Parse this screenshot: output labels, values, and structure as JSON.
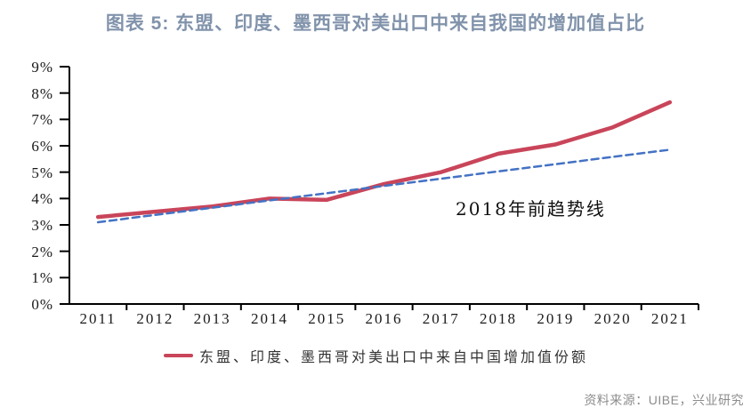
{
  "title": "图表 5:  东盟、印度、墨西哥对美出口中来自我国的增加值占比",
  "source": "资料来源：UIBE，兴业研究",
  "colors": {
    "title": "#8193AB",
    "axis": "#000000",
    "source_text": "#8C8C8C",
    "main_series": "#C9455A",
    "trend_line": "#4472C4"
  },
  "chart_data": {
    "type": "line",
    "title": "图表 5:  东盟、印度、墨西哥对美出口中来自我国的增加值占比",
    "x": [
      2011,
      2012,
      2013,
      2014,
      2015,
      2016,
      2017,
      2018,
      2019,
      2020,
      2021
    ],
    "series": [
      {
        "name": "东盟、印度、墨西哥对美出口中来自中国增加值份额",
        "style": "solid",
        "color": "#C9455A",
        "values": [
          3.3,
          3.5,
          3.7,
          4.0,
          3.95,
          4.55,
          5.0,
          5.7,
          6.05,
          6.7,
          7.65
        ]
      },
      {
        "name": "2018年前趋势线",
        "style": "dashed",
        "color": "#4472C4",
        "values": [
          3.1,
          3.38,
          3.65,
          3.93,
          4.2,
          4.48,
          4.75,
          5.03,
          5.3,
          5.58,
          5.85
        ]
      }
    ],
    "xlabel": "",
    "ylabel": "",
    "ylim": [
      0,
      9
    ],
    "ytick_labels": [
      "0%",
      "1%",
      "2%",
      "3%",
      "4%",
      "5%",
      "6%",
      "7%",
      "8%",
      "9%"
    ],
    "grid": false,
    "legend_position": "bottom",
    "annotation": {
      "text": "2018年前趋势线"
    }
  }
}
